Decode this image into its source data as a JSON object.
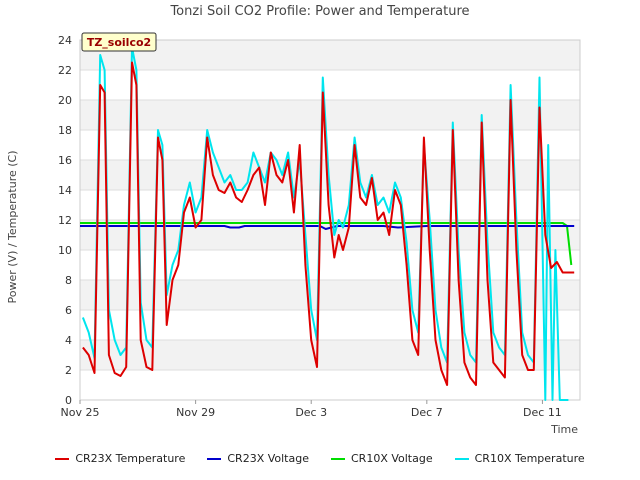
{
  "chart_data": {
    "type": "line",
    "title": "Tonzi Soil CO2 Profile: Power and Temperature",
    "xlabel": "Time",
    "ylabel": "Power (V) / Temperature (C)",
    "station_label": "TZ_soilco2",
    "xlim": [
      0,
      17.3
    ],
    "ylim": [
      0,
      24
    ],
    "x_ticks": [
      {
        "x": 0,
        "label": "Nov 25"
      },
      {
        "x": 4,
        "label": "Nov 29"
      },
      {
        "x": 8,
        "label": "Dec 3"
      },
      {
        "x": 12,
        "label": "Dec 7"
      },
      {
        "x": 16,
        "label": "Dec 11"
      }
    ],
    "y_ticks": [
      0,
      2,
      4,
      6,
      8,
      10,
      12,
      14,
      16,
      18,
      20,
      22,
      24
    ],
    "grid": "horizontal bands",
    "legend_position": "bottom",
    "series": [
      {
        "name": "CR23X Temperature",
        "color": "#dd0000",
        "x": [
          0.1,
          0.3,
          0.5,
          0.7,
          0.85,
          1.0,
          1.2,
          1.4,
          1.6,
          1.8,
          1.95,
          2.1,
          2.3,
          2.5,
          2.7,
          2.85,
          3.0,
          3.2,
          3.4,
          3.6,
          3.8,
          4.0,
          4.2,
          4.4,
          4.6,
          4.8,
          5.0,
          5.2,
          5.4,
          5.6,
          5.8,
          6.0,
          6.2,
          6.4,
          6.6,
          6.8,
          7.0,
          7.2,
          7.4,
          7.6,
          7.8,
          8.0,
          8.2,
          8.4,
          8.6,
          8.8,
          8.95,
          9.1,
          9.3,
          9.5,
          9.7,
          9.9,
          10.1,
          10.3,
          10.5,
          10.7,
          10.9,
          11.1,
          11.3,
          11.5,
          11.7,
          11.9,
          12.1,
          12.3,
          12.5,
          12.7,
          12.9,
          13.1,
          13.3,
          13.5,
          13.7,
          13.9,
          14.1,
          14.3,
          14.5,
          14.7,
          14.9,
          15.1,
          15.3,
          15.5,
          15.7,
          15.9,
          16.1,
          16.3,
          16.5,
          16.7,
          16.9,
          17.1
        ],
        "values": [
          3.5,
          3.0,
          1.8,
          21.0,
          20.5,
          3.0,
          1.8,
          1.6,
          2.2,
          22.5,
          21.0,
          4.0,
          2.2,
          2.0,
          17.5,
          16.0,
          5.0,
          8.0,
          9.0,
          12.5,
          13.5,
          11.5,
          12.0,
          17.5,
          15.0,
          14.0,
          13.8,
          14.5,
          13.5,
          13.2,
          14.0,
          15.0,
          15.5,
          13.0,
          16.5,
          15.0,
          14.5,
          16.0,
          12.5,
          17.0,
          9.0,
          4.0,
          2.2,
          20.5,
          13.0,
          9.5,
          11.0,
          10.0,
          11.5,
          17.0,
          13.5,
          13.0,
          14.8,
          12.0,
          12.5,
          11.0,
          14.0,
          13.0,
          9.0,
          4.0,
          3.0,
          17.5,
          10.0,
          4.0,
          2.0,
          1.0,
          18.0,
          8.0,
          2.5,
          1.5,
          1.0,
          18.5,
          8.0,
          2.5,
          2.0,
          1.5,
          20.0,
          10.0,
          3.0,
          2.0,
          2.0,
          19.5,
          11.0,
          8.8,
          9.2,
          8.5,
          8.5,
          8.5
        ]
      },
      {
        "name": "CR23X Voltage",
        "color": "#0000cc",
        "x": [
          0,
          5.0,
          5.2,
          5.5,
          5.7,
          8.3,
          8.5,
          8.7,
          8.9,
          9.2,
          10.5,
          11.0,
          12.0,
          17.1
        ],
        "values": [
          11.6,
          11.6,
          11.5,
          11.5,
          11.6,
          11.6,
          11.4,
          11.5,
          11.6,
          11.6,
          11.6,
          11.5,
          11.6,
          11.6
        ]
      },
      {
        "name": "CR10X Voltage",
        "color": "#00dd00",
        "x": [
          0,
          16.5,
          16.7,
          16.85,
          17.0
        ],
        "values": [
          11.8,
          11.8,
          11.8,
          11.6,
          9.0
        ]
      },
      {
        "name": "CR10X Temperature",
        "color": "#00e5ee",
        "x": [
          0.1,
          0.3,
          0.5,
          0.7,
          0.85,
          1.0,
          1.2,
          1.4,
          1.6,
          1.8,
          1.95,
          2.1,
          2.3,
          2.5,
          2.7,
          2.85,
          3.0,
          3.2,
          3.4,
          3.6,
          3.8,
          4.0,
          4.2,
          4.4,
          4.6,
          4.8,
          5.0,
          5.2,
          5.4,
          5.6,
          5.8,
          6.0,
          6.2,
          6.4,
          6.6,
          6.8,
          7.0,
          7.2,
          7.4,
          7.6,
          7.8,
          8.0,
          8.2,
          8.4,
          8.6,
          8.8,
          8.95,
          9.1,
          9.3,
          9.5,
          9.7,
          9.9,
          10.1,
          10.3,
          10.5,
          10.7,
          10.9,
          11.1,
          11.3,
          11.5,
          11.7,
          11.9,
          12.1,
          12.3,
          12.5,
          12.7,
          12.9,
          13.1,
          13.3,
          13.5,
          13.7,
          13.9,
          14.1,
          14.3,
          14.5,
          14.7,
          14.9,
          15.1,
          15.3,
          15.5,
          15.7,
          15.9,
          16.1,
          16.2,
          16.35,
          16.45,
          16.6,
          16.8,
          16.9
        ],
        "values": [
          5.5,
          4.5,
          2.8,
          23.0,
          22.0,
          6.0,
          4.0,
          3.0,
          3.5,
          23.5,
          22.0,
          6.5,
          4.0,
          3.5,
          18.0,
          17.0,
          7.0,
          9.0,
          10.0,
          13.0,
          14.5,
          12.5,
          13.5,
          18.0,
          16.5,
          15.5,
          14.5,
          15.0,
          14.0,
          14.0,
          14.5,
          16.5,
          15.5,
          14.5,
          16.5,
          16.0,
          15.0,
          16.5,
          13.5,
          16.0,
          11.0,
          6.0,
          4.0,
          21.5,
          15.0,
          11.0,
          12.0,
          11.5,
          13.0,
          17.5,
          14.5,
          13.5,
          15.0,
          13.0,
          13.5,
          12.5,
          14.5,
          13.5,
          10.5,
          6.0,
          4.5,
          17.0,
          12.0,
          6.0,
          3.5,
          2.5,
          18.5,
          10.0,
          4.5,
          3.0,
          2.5,
          19.0,
          10.5,
          4.5,
          3.5,
          3.0,
          21.0,
          12.0,
          4.5,
          3.0,
          2.5,
          21.5,
          0.0,
          17.0,
          0.0,
          10.0,
          0.0,
          0.0,
          0.0
        ]
      }
    ]
  }
}
